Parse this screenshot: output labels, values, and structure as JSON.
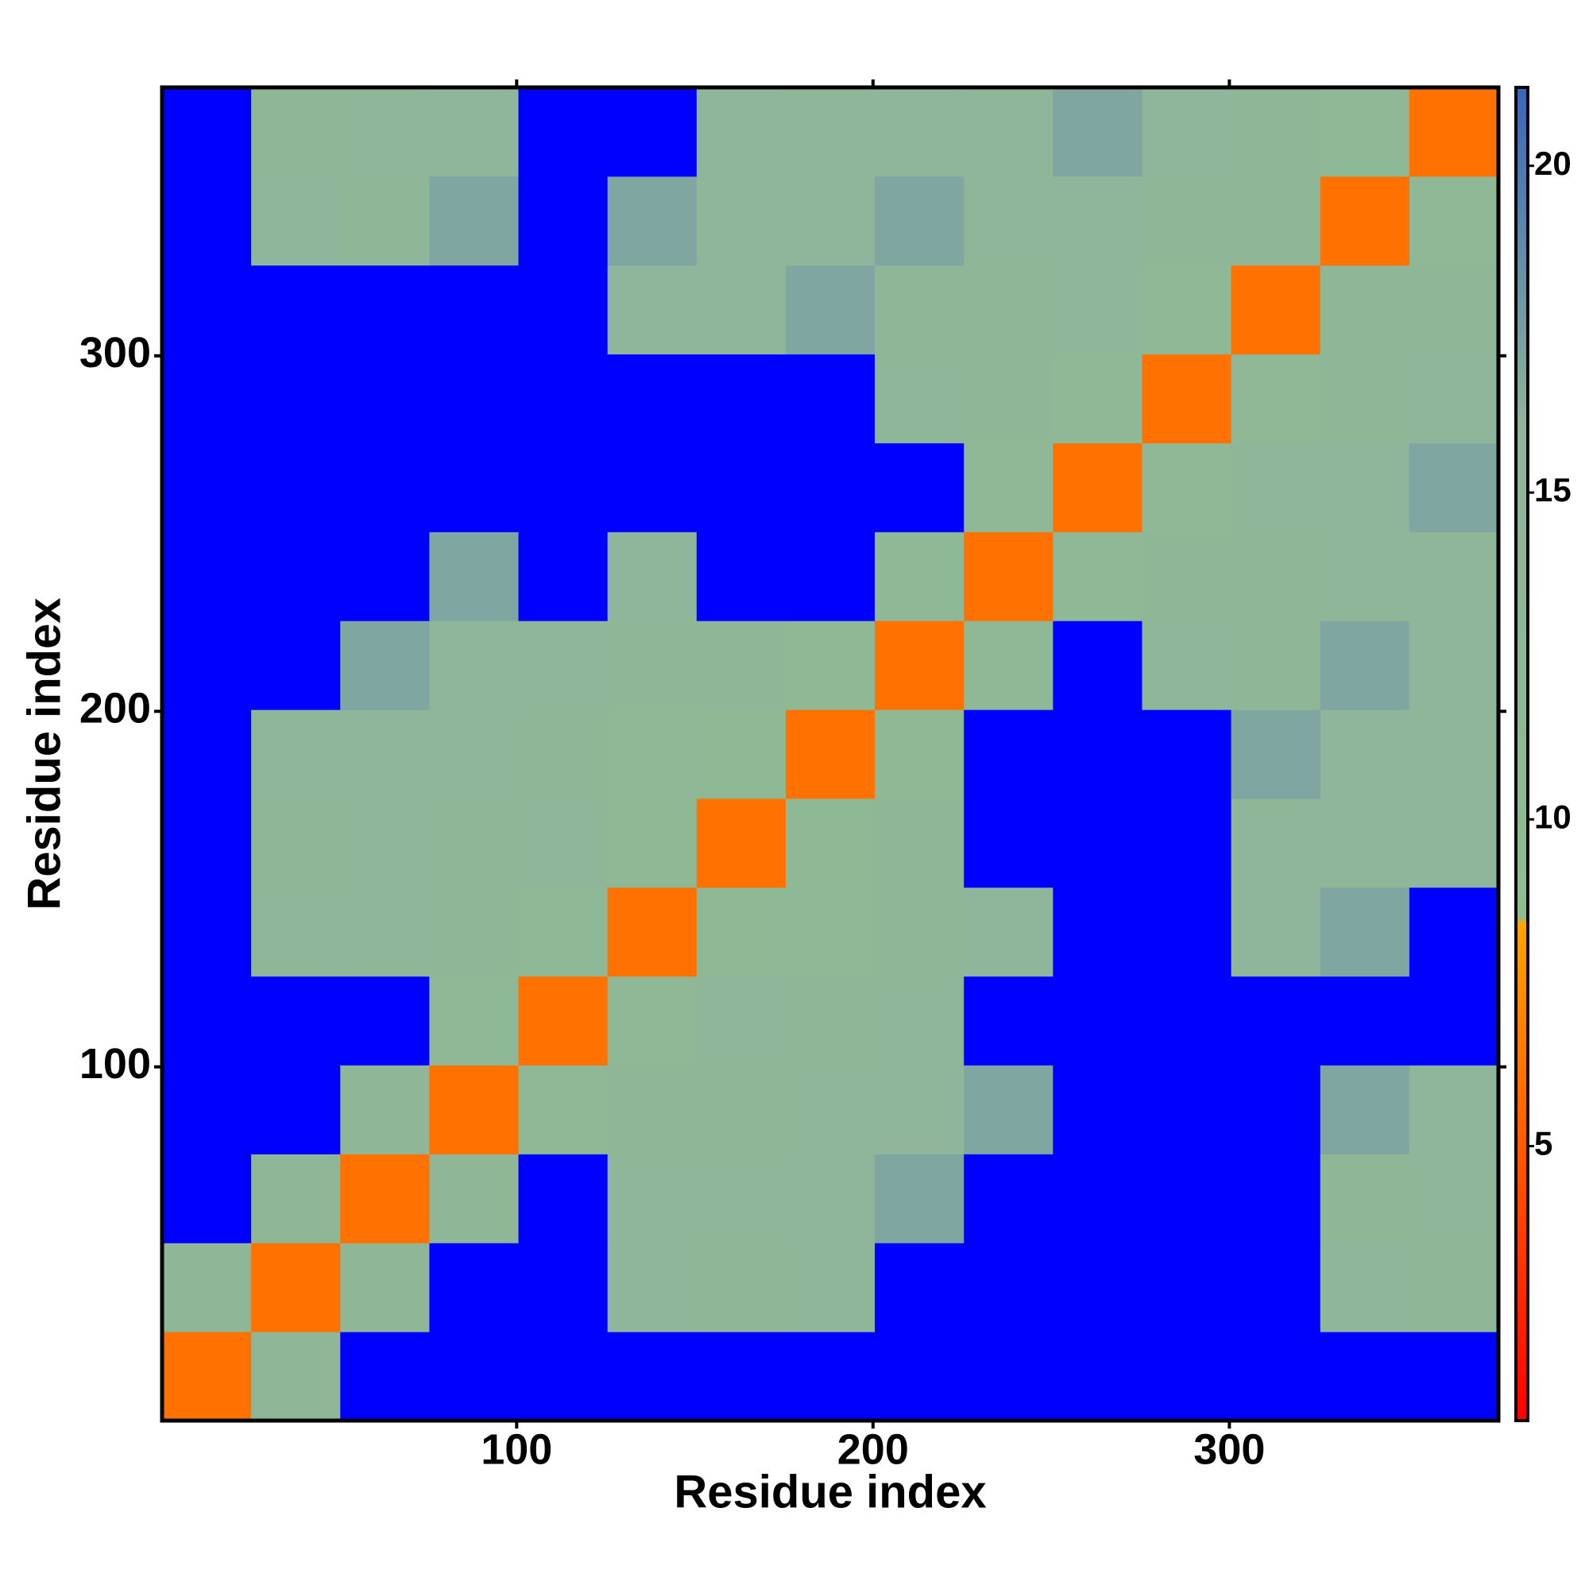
{
  "chart_data": {
    "type": "heatmap",
    "xlabel": "Residue index",
    "ylabel": "Residue index",
    "xbins": [
      0.5,
      25.5,
      50.5,
      75.5,
      100.5,
      125.5,
      150.5,
      175.5,
      200.5,
      225.5,
      250.5,
      275.5,
      300.5,
      325.5,
      350.5,
      375.5
    ],
    "ybins": [
      0.5,
      25.5,
      50.5,
      75.5,
      100.5,
      125.5,
      150.5,
      175.5,
      200.5,
      225.5,
      250.5,
      275.5,
      300.5,
      325.5,
      350.5,
      375.5
    ],
    "xlim": [
      0.5,
      375.5
    ],
    "ylim": [
      0.5,
      375.5
    ],
    "xticks": [
      100,
      200,
      300
    ],
    "yticks": [
      100,
      200,
      300
    ],
    "zlim": [
      0.8,
      21.2
    ],
    "zticks": [
      5,
      10,
      15,
      20
    ],
    "over_color": "#0000ff",
    "colorscale": [
      {
        "value": 0.8,
        "color": "#ff0000"
      },
      {
        "value": 4,
        "color": "#ff4500"
      },
      {
        "value": 8.4,
        "color": "#ffa500"
      },
      {
        "value": 8.5,
        "color": "#8fbc8f"
      },
      {
        "value": 16,
        "color": "#8fb59a"
      },
      {
        "value": 21.2,
        "color": "#3a66b8"
      }
    ],
    "values": [
      [
        6,
        14,
        25,
        25,
        25,
        25,
        25,
        25,
        25,
        25,
        25,
        25,
        25,
        25,
        25
      ],
      [
        14,
        6,
        14,
        25,
        25,
        15,
        14,
        15,
        25,
        25,
        25,
        25,
        25,
        16,
        14
      ],
      [
        25,
        14,
        6,
        14,
        25,
        15,
        15,
        16,
        17,
        25,
        25,
        25,
        25,
        14,
        15
      ],
      [
        25,
        25,
        14,
        6,
        13,
        14,
        14,
        15,
        16,
        17,
        25,
        25,
        25,
        17,
        16
      ],
      [
        25,
        25,
        25,
        13,
        6,
        13,
        15,
        14,
        15,
        25,
        25,
        25,
        25,
        25,
        25
      ],
      [
        25,
        15,
        15,
        14,
        13,
        6,
        12,
        13,
        14,
        16,
        25,
        25,
        16,
        17,
        25
      ],
      [
        25,
        14,
        15,
        14,
        15,
        12,
        6,
        12,
        14,
        25,
        25,
        25,
        15,
        15,
        16
      ],
      [
        25,
        15,
        16,
        15,
        14,
        13,
        12,
        6,
        12,
        25,
        25,
        25,
        17,
        16,
        15
      ],
      [
        25,
        25,
        17,
        16,
        15,
        14,
        14,
        12,
        6,
        13,
        25,
        15,
        14,
        17,
        16
      ],
      [
        25,
        25,
        25,
        17,
        25,
        16,
        25,
        25,
        13,
        6,
        13,
        14,
        14,
        15,
        15
      ],
      [
        25,
        25,
        25,
        25,
        25,
        25,
        25,
        25,
        25,
        13,
        6,
        13,
        15,
        16,
        17
      ],
      [
        25,
        25,
        25,
        25,
        25,
        25,
        25,
        25,
        15,
        14,
        13,
        6,
        13,
        14,
        16
      ],
      [
        25,
        25,
        25,
        25,
        25,
        16,
        15,
        17,
        14,
        14,
        15,
        13,
        6,
        14,
        14
      ],
      [
        25,
        16,
        14,
        17,
        25,
        17,
        15,
        16,
        17,
        15,
        16,
        14,
        14,
        6,
        13
      ],
      [
        25,
        14,
        15,
        16,
        25,
        25,
        16,
        15,
        16,
        15,
        17,
        16,
        14,
        13,
        6
      ]
    ]
  }
}
